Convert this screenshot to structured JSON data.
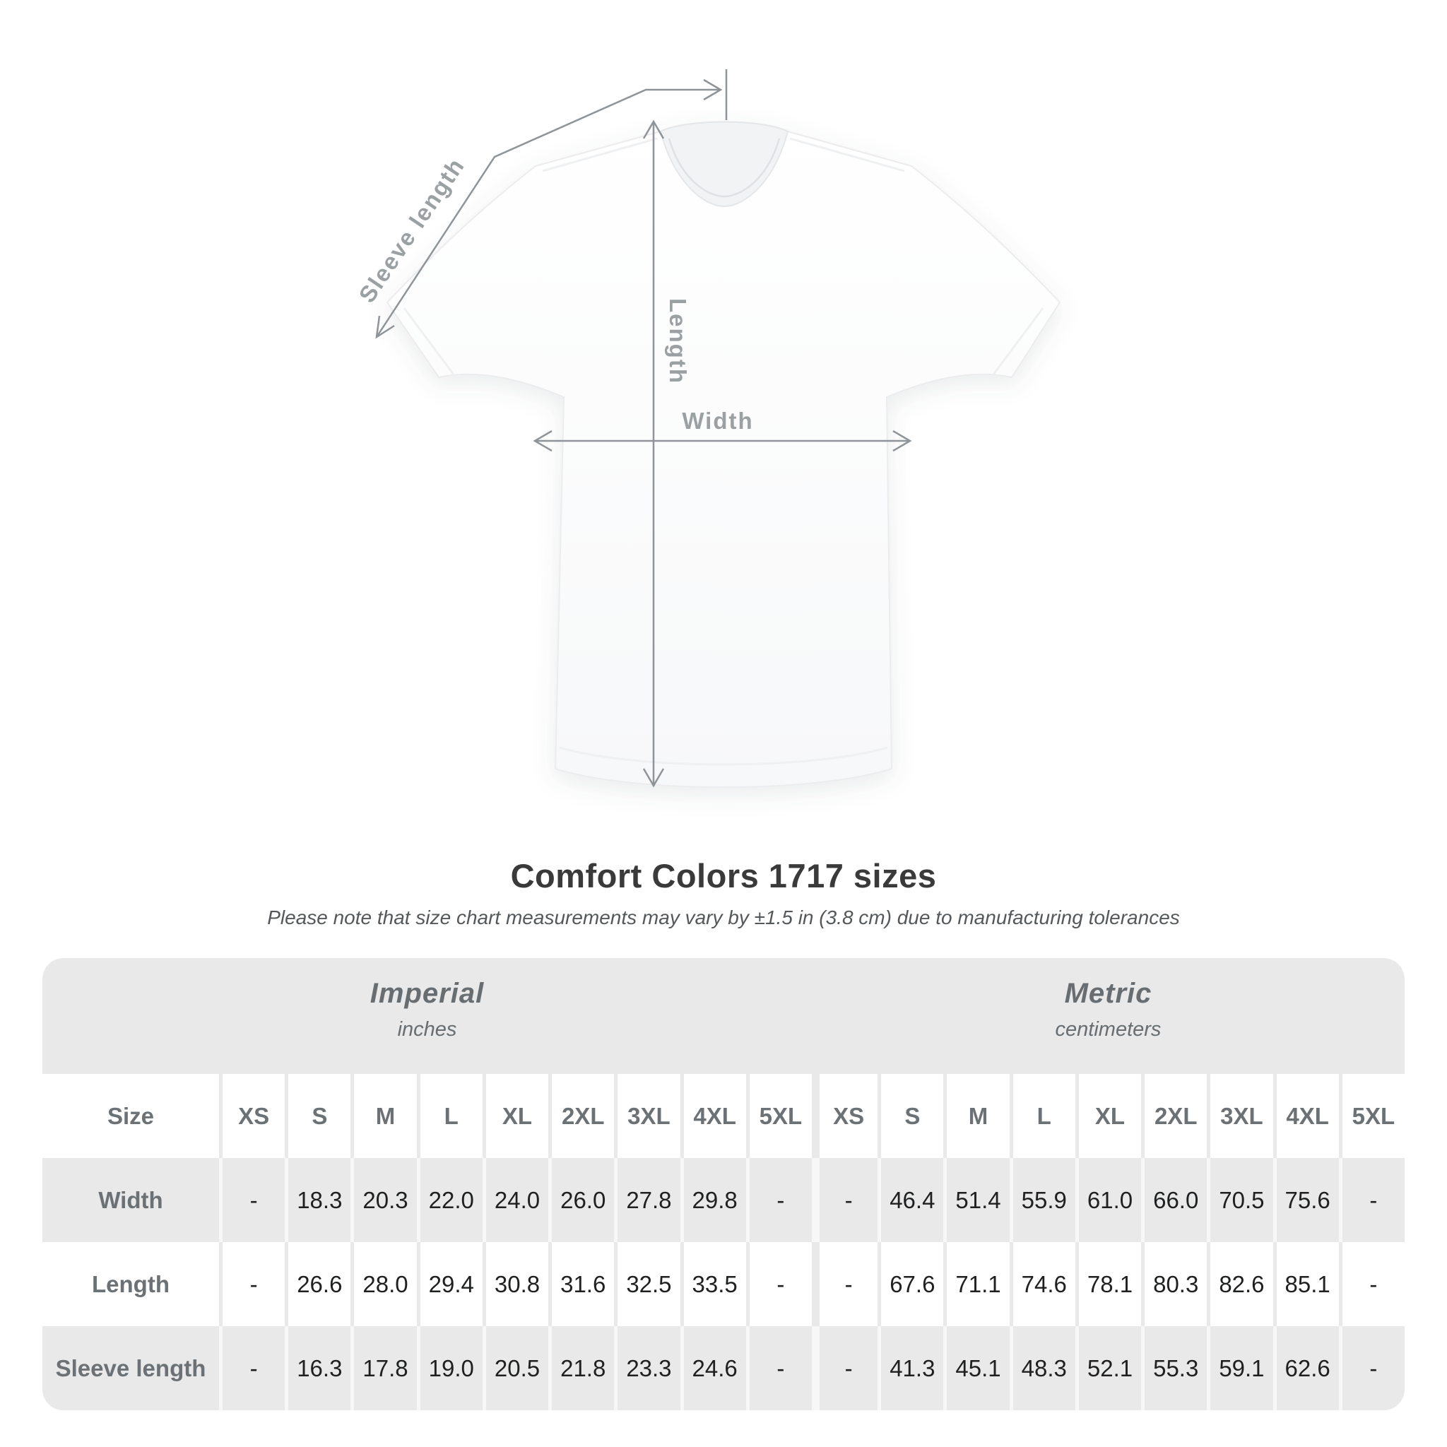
{
  "diagram": {
    "annotations": {
      "sleeve_length_label": "Sleeve length",
      "length_label": "Length",
      "width_label": "Width"
    },
    "line_color": "#8e9498",
    "label_color": "#9ba0a3"
  },
  "heading": {
    "title": "Comfort Colors 1717 sizes",
    "subtitle": "Please note that size chart measurements may vary by ±1.5 in (3.8 cm) due to manufacturing tolerances"
  },
  "chart_data": {
    "type": "table",
    "title": "Comfort Colors 1717 sizes",
    "note": "Please note that size chart measurements may vary by ±1.5 in (3.8 cm) due to manufacturing tolerances",
    "unit_groups": [
      {
        "label": "Imperial",
        "sublabel": "inches"
      },
      {
        "label": "Metric",
        "sublabel": "centimeters"
      }
    ],
    "corner_header": "Size",
    "sizes": [
      "XS",
      "S",
      "M",
      "L",
      "XL",
      "2XL",
      "3XL",
      "4XL",
      "5XL"
    ],
    "rows": [
      {
        "label": "Width",
        "imperial": [
          "-",
          "18.3",
          "20.3",
          "22.0",
          "24.0",
          "26.0",
          "27.8",
          "29.8",
          "-"
        ],
        "metric": [
          "-",
          "46.4",
          "51.4",
          "55.9",
          "61.0",
          "66.0",
          "70.5",
          "75.6",
          "-"
        ]
      },
      {
        "label": "Length",
        "imperial": [
          "-",
          "26.6",
          "28.0",
          "29.4",
          "30.8",
          "31.6",
          "32.5",
          "33.5",
          "-"
        ],
        "metric": [
          "-",
          "67.6",
          "71.1",
          "74.6",
          "78.1",
          "80.3",
          "82.6",
          "85.1",
          "-"
        ]
      },
      {
        "label": "Sleeve length",
        "imperial": [
          "-",
          "16.3",
          "17.8",
          "19.0",
          "20.5",
          "21.8",
          "23.3",
          "24.6",
          "-"
        ],
        "metric": [
          "-",
          "41.3",
          "45.1",
          "48.3",
          "52.1",
          "55.3",
          "59.1",
          "62.6",
          "-"
        ]
      }
    ]
  },
  "colors": {
    "table_bg": "#e9e9e9",
    "row_white": "#ffffff",
    "title_color": "#3a3a3a",
    "subtitle_color": "#55585a",
    "header_text": "#6b7174",
    "value_text": "#1f2021"
  }
}
